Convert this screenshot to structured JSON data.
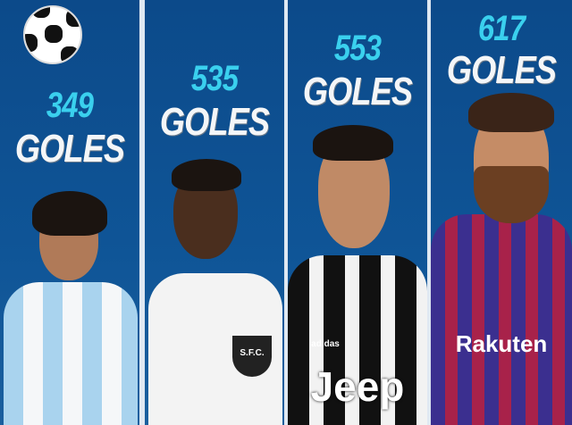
{
  "players": [
    {
      "goals": "349",
      "label": "GOLES"
    },
    {
      "goals": "535",
      "label": "GOLES",
      "crest": "S.F.C."
    },
    {
      "goals": "553",
      "label": "GOLES",
      "sponsor": "Jeep",
      "brand": "adidas"
    },
    {
      "goals": "617",
      "label": "GOLES",
      "sponsor": "Rakuten"
    }
  ],
  "colors": {
    "background": "#0f5597",
    "number": "#3ad0ee",
    "label": "#f4f6f8"
  },
  "icons": [
    "soccer-ball-icon"
  ]
}
